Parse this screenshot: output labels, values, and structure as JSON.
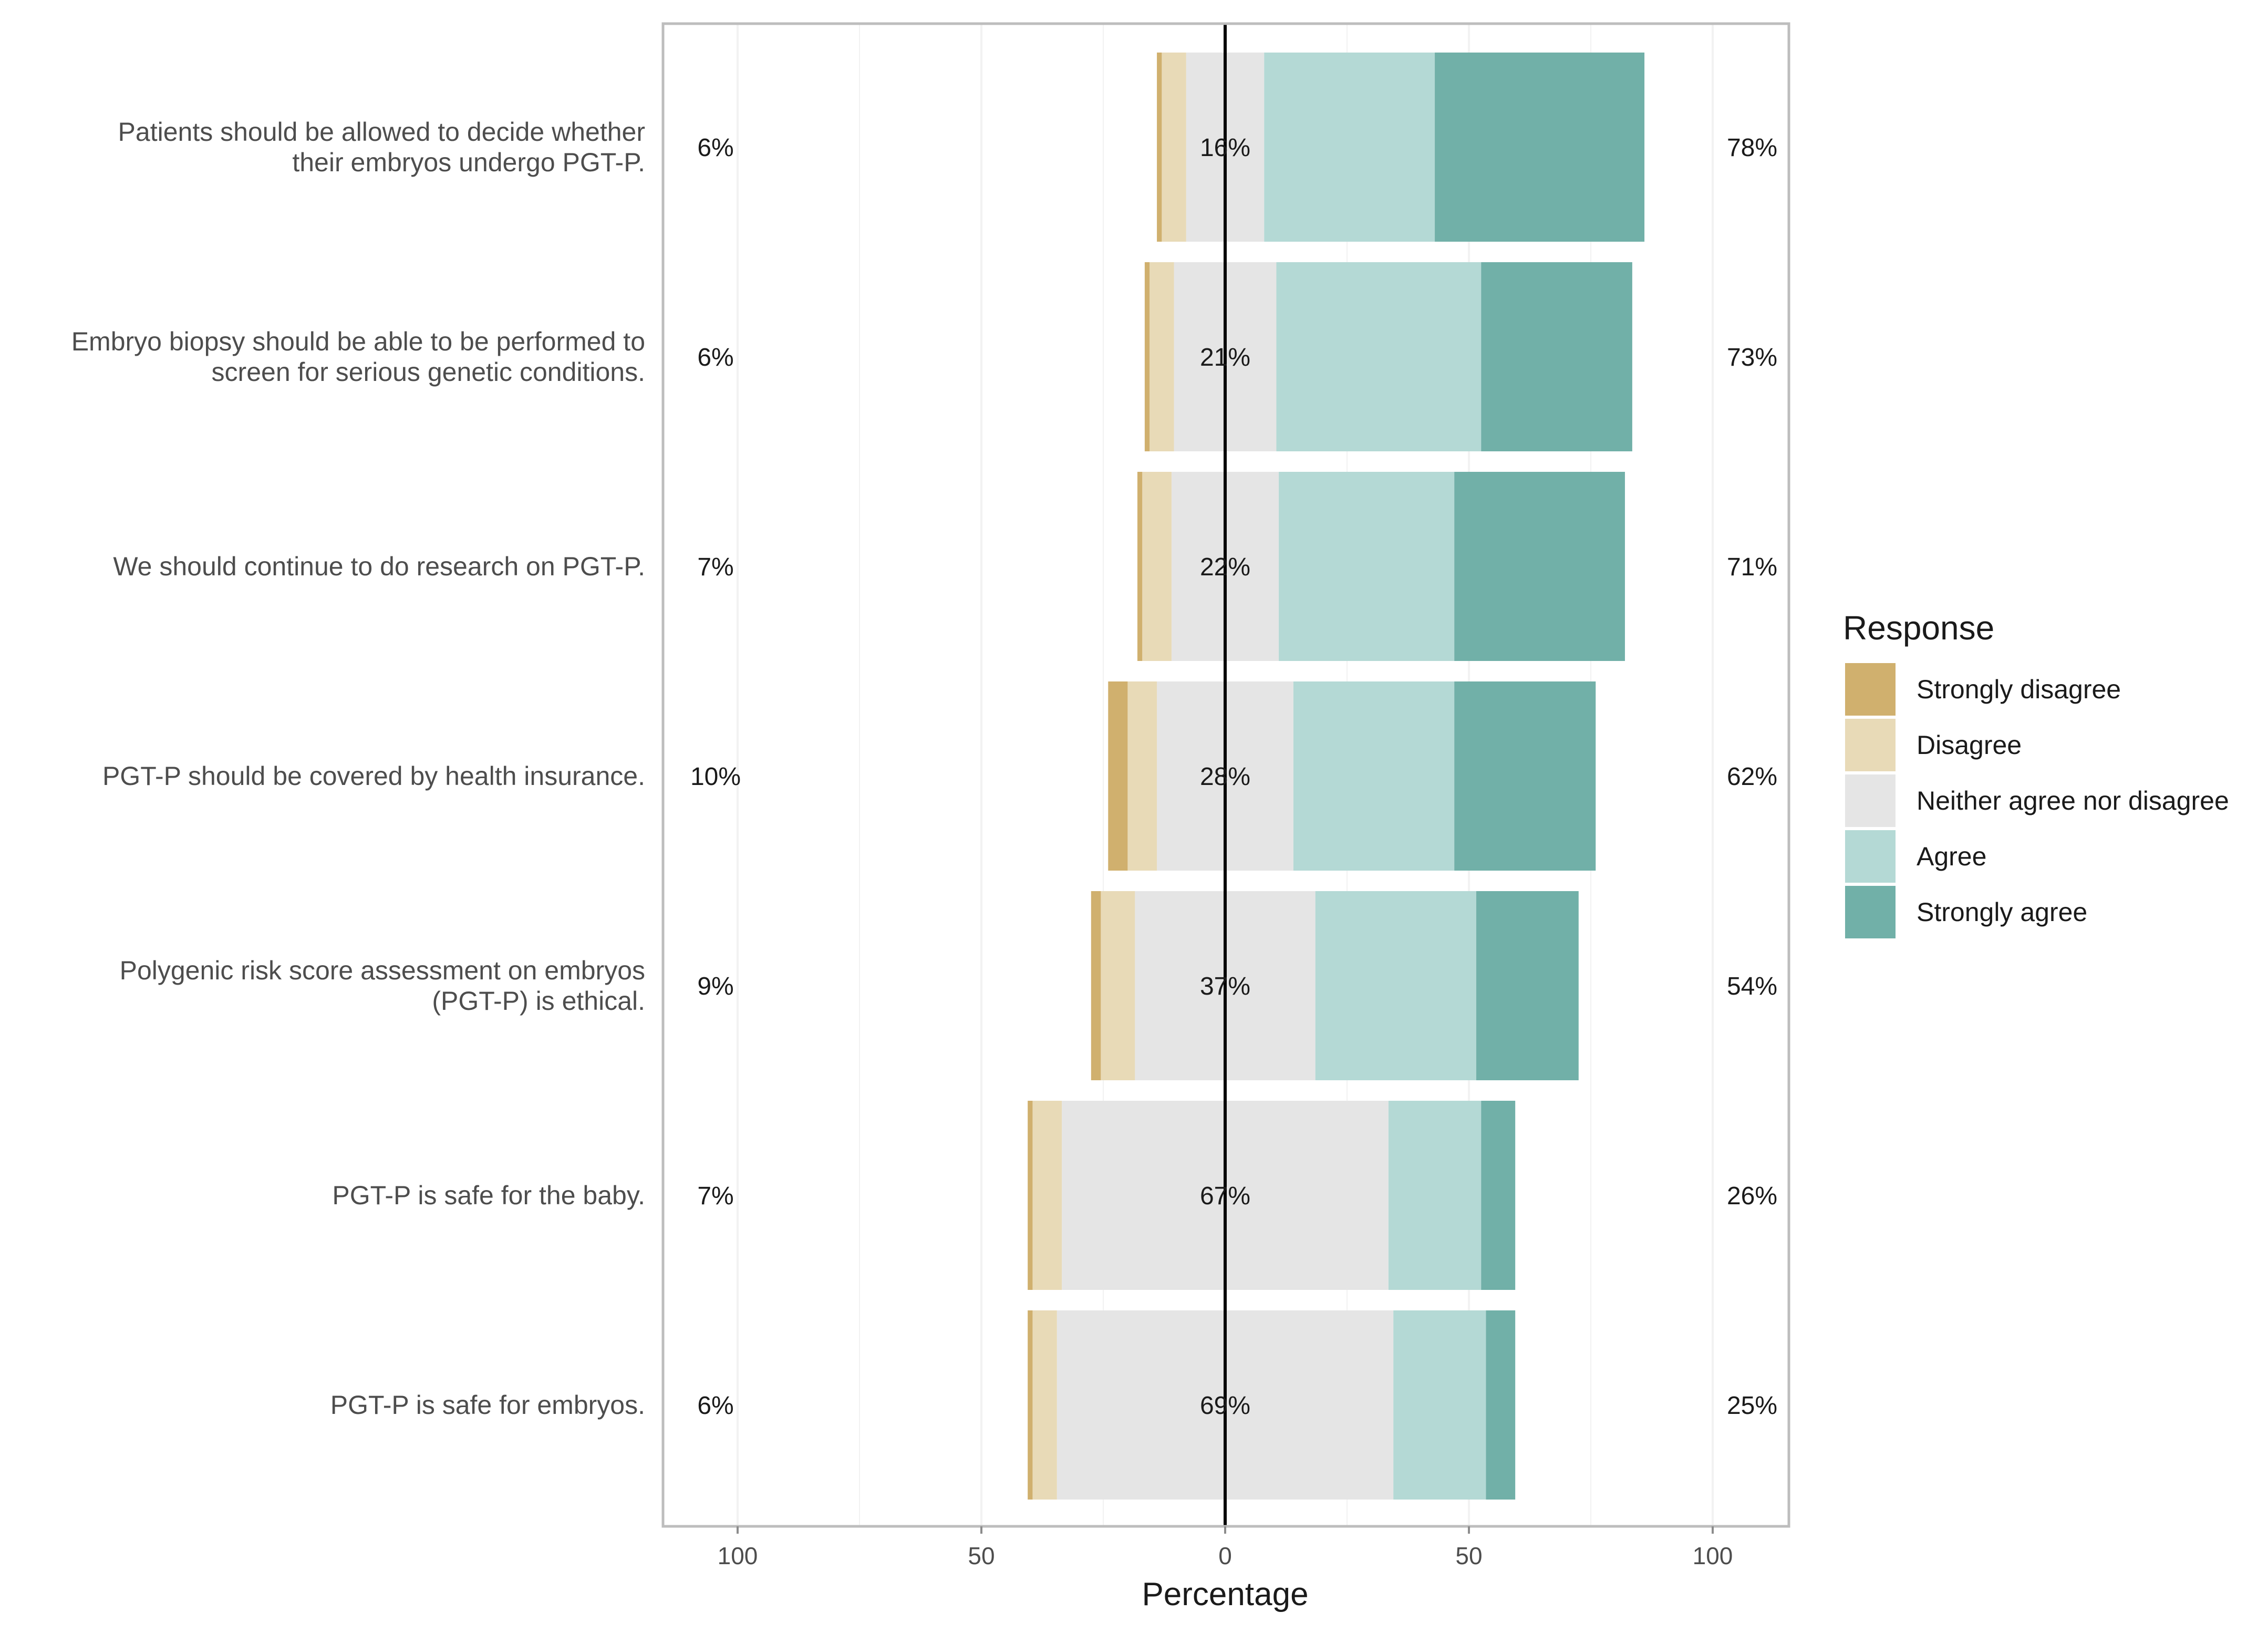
{
  "chart_data": {
    "type": "bar",
    "orientation": "horizontal",
    "stacked": "diverging",
    "xlabel": "Percentage",
    "xlim": [
      -100,
      100
    ],
    "xticks": [
      -100,
      -50,
      0,
      50,
      100
    ],
    "xtick_labels": [
      "100",
      "50",
      "0",
      "50",
      "100"
    ],
    "legend": {
      "title": "Response",
      "position": "right"
    },
    "colors": {
      "Strongly disagree": "#d0b06e",
      "Disagree": "#e8dab7",
      "Neither agree nor disagree": "#e5e5e5",
      "Agree": "#b4d9d5",
      "Strongly agree": "#71b0a8"
    },
    "categories": [
      "Patients should be allowed to decide whether\ntheir embryos undergo PGT-P.",
      "Embryo biopsy should be able to be performed to\nscreen for serious genetic conditions.",
      "We should continue to do research on PGT-P.",
      "PGT-P should be covered by health insurance.",
      "Polygenic risk score assessment on embryos\n(PGT-P) is ethical.",
      "PGT-P is safe for the baby.",
      "PGT-P is safe for embryos."
    ],
    "series": [
      {
        "name": "Strongly disagree",
        "values": [
          1,
          1,
          1,
          4,
          2,
          1,
          1
        ]
      },
      {
        "name": "Disagree",
        "values": [
          5,
          5,
          6,
          6,
          7,
          6,
          5
        ]
      },
      {
        "name": "Neither agree nor disagree",
        "values": [
          16,
          21,
          22,
          28,
          37,
          67,
          69
        ]
      },
      {
        "name": "Agree",
        "values": [
          35,
          42,
          36,
          33,
          33,
          19,
          19
        ]
      },
      {
        "name": "Strongly agree",
        "values": [
          43,
          31,
          35,
          29,
          21,
          7,
          6
        ]
      }
    ],
    "left_percent_labels": [
      "6%",
      "6%",
      "7%",
      "10%",
      "9%",
      "7%",
      "6%"
    ],
    "center_percent_labels": [
      "16%",
      "21%",
      "22%",
      "28%",
      "37%",
      "67%",
      "69%"
    ],
    "right_percent_labels": [
      "78%",
      "73%",
      "71%",
      "62%",
      "54%",
      "26%",
      "25%"
    ]
  }
}
